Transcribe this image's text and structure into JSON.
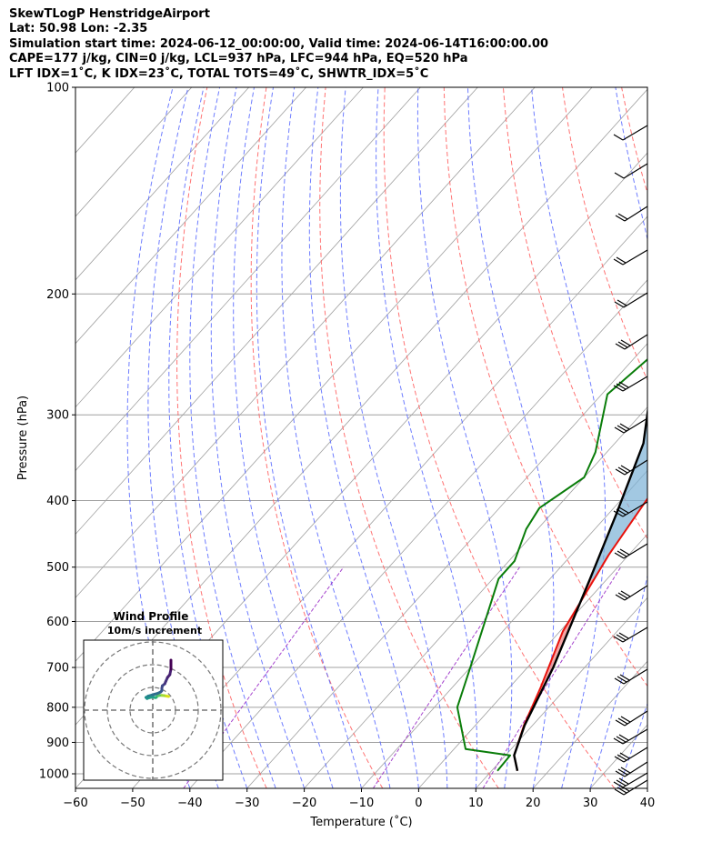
{
  "header": {
    "line1": "SkewTLogP HenstridgeAirport",
    "line2": "Lat: 50.98   Lon: -2.35",
    "line3": "Simulation start time: 2024-06-12_00:00:00, Valid time: 2024-06-14T16:00:00.00",
    "line4": "CAPE=177 j/kg, CIN=0 j/kg, LCL=937 hPa, LFC=944 hPa, EQ=520 hPa",
    "line5": "LFT IDX=1˚C, K IDX=23˚C, TOTAL TOTS=49˚C, SHWTR_IDX=5˚C"
  },
  "chart_data": [
    {
      "type": "line",
      "subtype": "skew-T log-P",
      "xlabel": "Temperature (˚C)",
      "ylabel": "Pressure (hPa)",
      "xlim": [
        -60,
        40
      ],
      "ylim": [
        1050,
        100
      ],
      "yscale": "log",
      "x_ticks": [
        "−60",
        "−50",
        "−40",
        "−30",
        "−20",
        "−10",
        "0",
        "10",
        "20",
        "30",
        "40"
      ],
      "y_ticks": [
        "100",
        "200",
        "300",
        "400",
        "500",
        "600",
        "700",
        "800",
        "900",
        "1000"
      ],
      "grid": true,
      "colors": {
        "temperature": "#e8120c",
        "dewpoint": "#0a7d0a",
        "parcel": "#000000",
        "cape": "#7ab0d6",
        "cin": "#f08080",
        "dry_adiabat": "#ff5a5a",
        "moist_adiabat": "#4a5cff",
        "mixing_ratio": "#9b30c8",
        "isotherm": "#a0a0a0"
      },
      "series": [
        {
          "key": "temperature",
          "points": [
            [
              14.5,
              990
            ],
            [
              11.5,
              940
            ],
            [
              8.5,
              850
            ],
            [
              5.5,
              750
            ],
            [
              0.5,
              620
            ],
            [
              -3.5,
              480
            ],
            [
              -5.5,
              400
            ],
            [
              -6.5,
              360
            ],
            [
              -6.5,
              330
            ],
            [
              -7.5,
              300
            ],
            [
              -8.0,
              270
            ],
            [
              -10.0,
              245
            ],
            [
              -12.0,
              220
            ],
            [
              -15.0,
              200
            ],
            [
              -23.0,
              170
            ],
            [
              -31.0,
              145
            ],
            [
              -37.0,
              125
            ],
            [
              -43.0,
              110
            ],
            [
              -47.5,
              100
            ]
          ]
        },
        {
          "key": "dewpoint",
          "points": [
            [
              11.0,
              990
            ],
            [
              10.8,
              940
            ],
            [
              2.0,
              920
            ],
            [
              -6.0,
              800
            ],
            [
              -10.0,
              700
            ],
            [
              -19.0,
              520
            ],
            [
              -19.0,
              490
            ],
            [
              -22.0,
              440
            ],
            [
              -23.0,
              410
            ],
            [
              -20.0,
              370
            ],
            [
              -22.0,
              340
            ],
            [
              -29.0,
              280
            ],
            [
              -27.0,
              240
            ],
            [
              -31.0,
              220
            ],
            [
              -36.0,
              200
            ],
            [
              -37.0,
              180
            ],
            [
              -42.0,
              150
            ],
            [
              -52.0,
              110
            ],
            [
              -57.5,
              100
            ]
          ]
        },
        {
          "key": "parcel",
          "points": [
            [
              14.5,
              990
            ],
            [
              11.5,
              940
            ],
            [
              8.6,
              850
            ],
            [
              4.5,
              700
            ],
            [
              -3.0,
              520
            ],
            [
              -8.5,
              420
            ],
            [
              -15.0,
              330
            ],
            [
              -23.0,
              270
            ],
            [
              -31.5,
              220
            ],
            [
              -42.0,
              175
            ],
            [
              -52.0,
              140
            ],
            [
              -62.0,
              115
            ],
            [
              -69.0,
              100
            ]
          ]
        }
      ]
    },
    {
      "type": "scatter",
      "subtype": "hodograph",
      "title": "Wind Profile",
      "subtitle": "10m/s increment",
      "points": [
        [
          7,
          6
        ],
        [
          6,
          6.2
        ],
        [
          5,
          6.4
        ],
        [
          4,
          6.5
        ],
        [
          3,
          6.5
        ],
        [
          2,
          6.2
        ],
        [
          1.5,
          5.6
        ],
        [
          1,
          5.5
        ],
        [
          0.2,
          5.8
        ],
        [
          -1.5,
          5.5
        ],
        [
          -2.5,
          5.1
        ],
        [
          -3,
          5.6
        ],
        [
          -2,
          6.2
        ],
        [
          0,
          6.8
        ],
        [
          2,
          7.3
        ],
        [
          3.5,
          8.0
        ],
        [
          4,
          8.6
        ],
        [
          4,
          9.6
        ],
        [
          4.2,
          10.7
        ],
        [
          5.3,
          11.6
        ],
        [
          5.7,
          12.6
        ],
        [
          6.5,
          14.4
        ],
        [
          7.5,
          15.6
        ],
        [
          8,
          18.0
        ],
        [
          8,
          22
        ]
      ]
    }
  ]
}
